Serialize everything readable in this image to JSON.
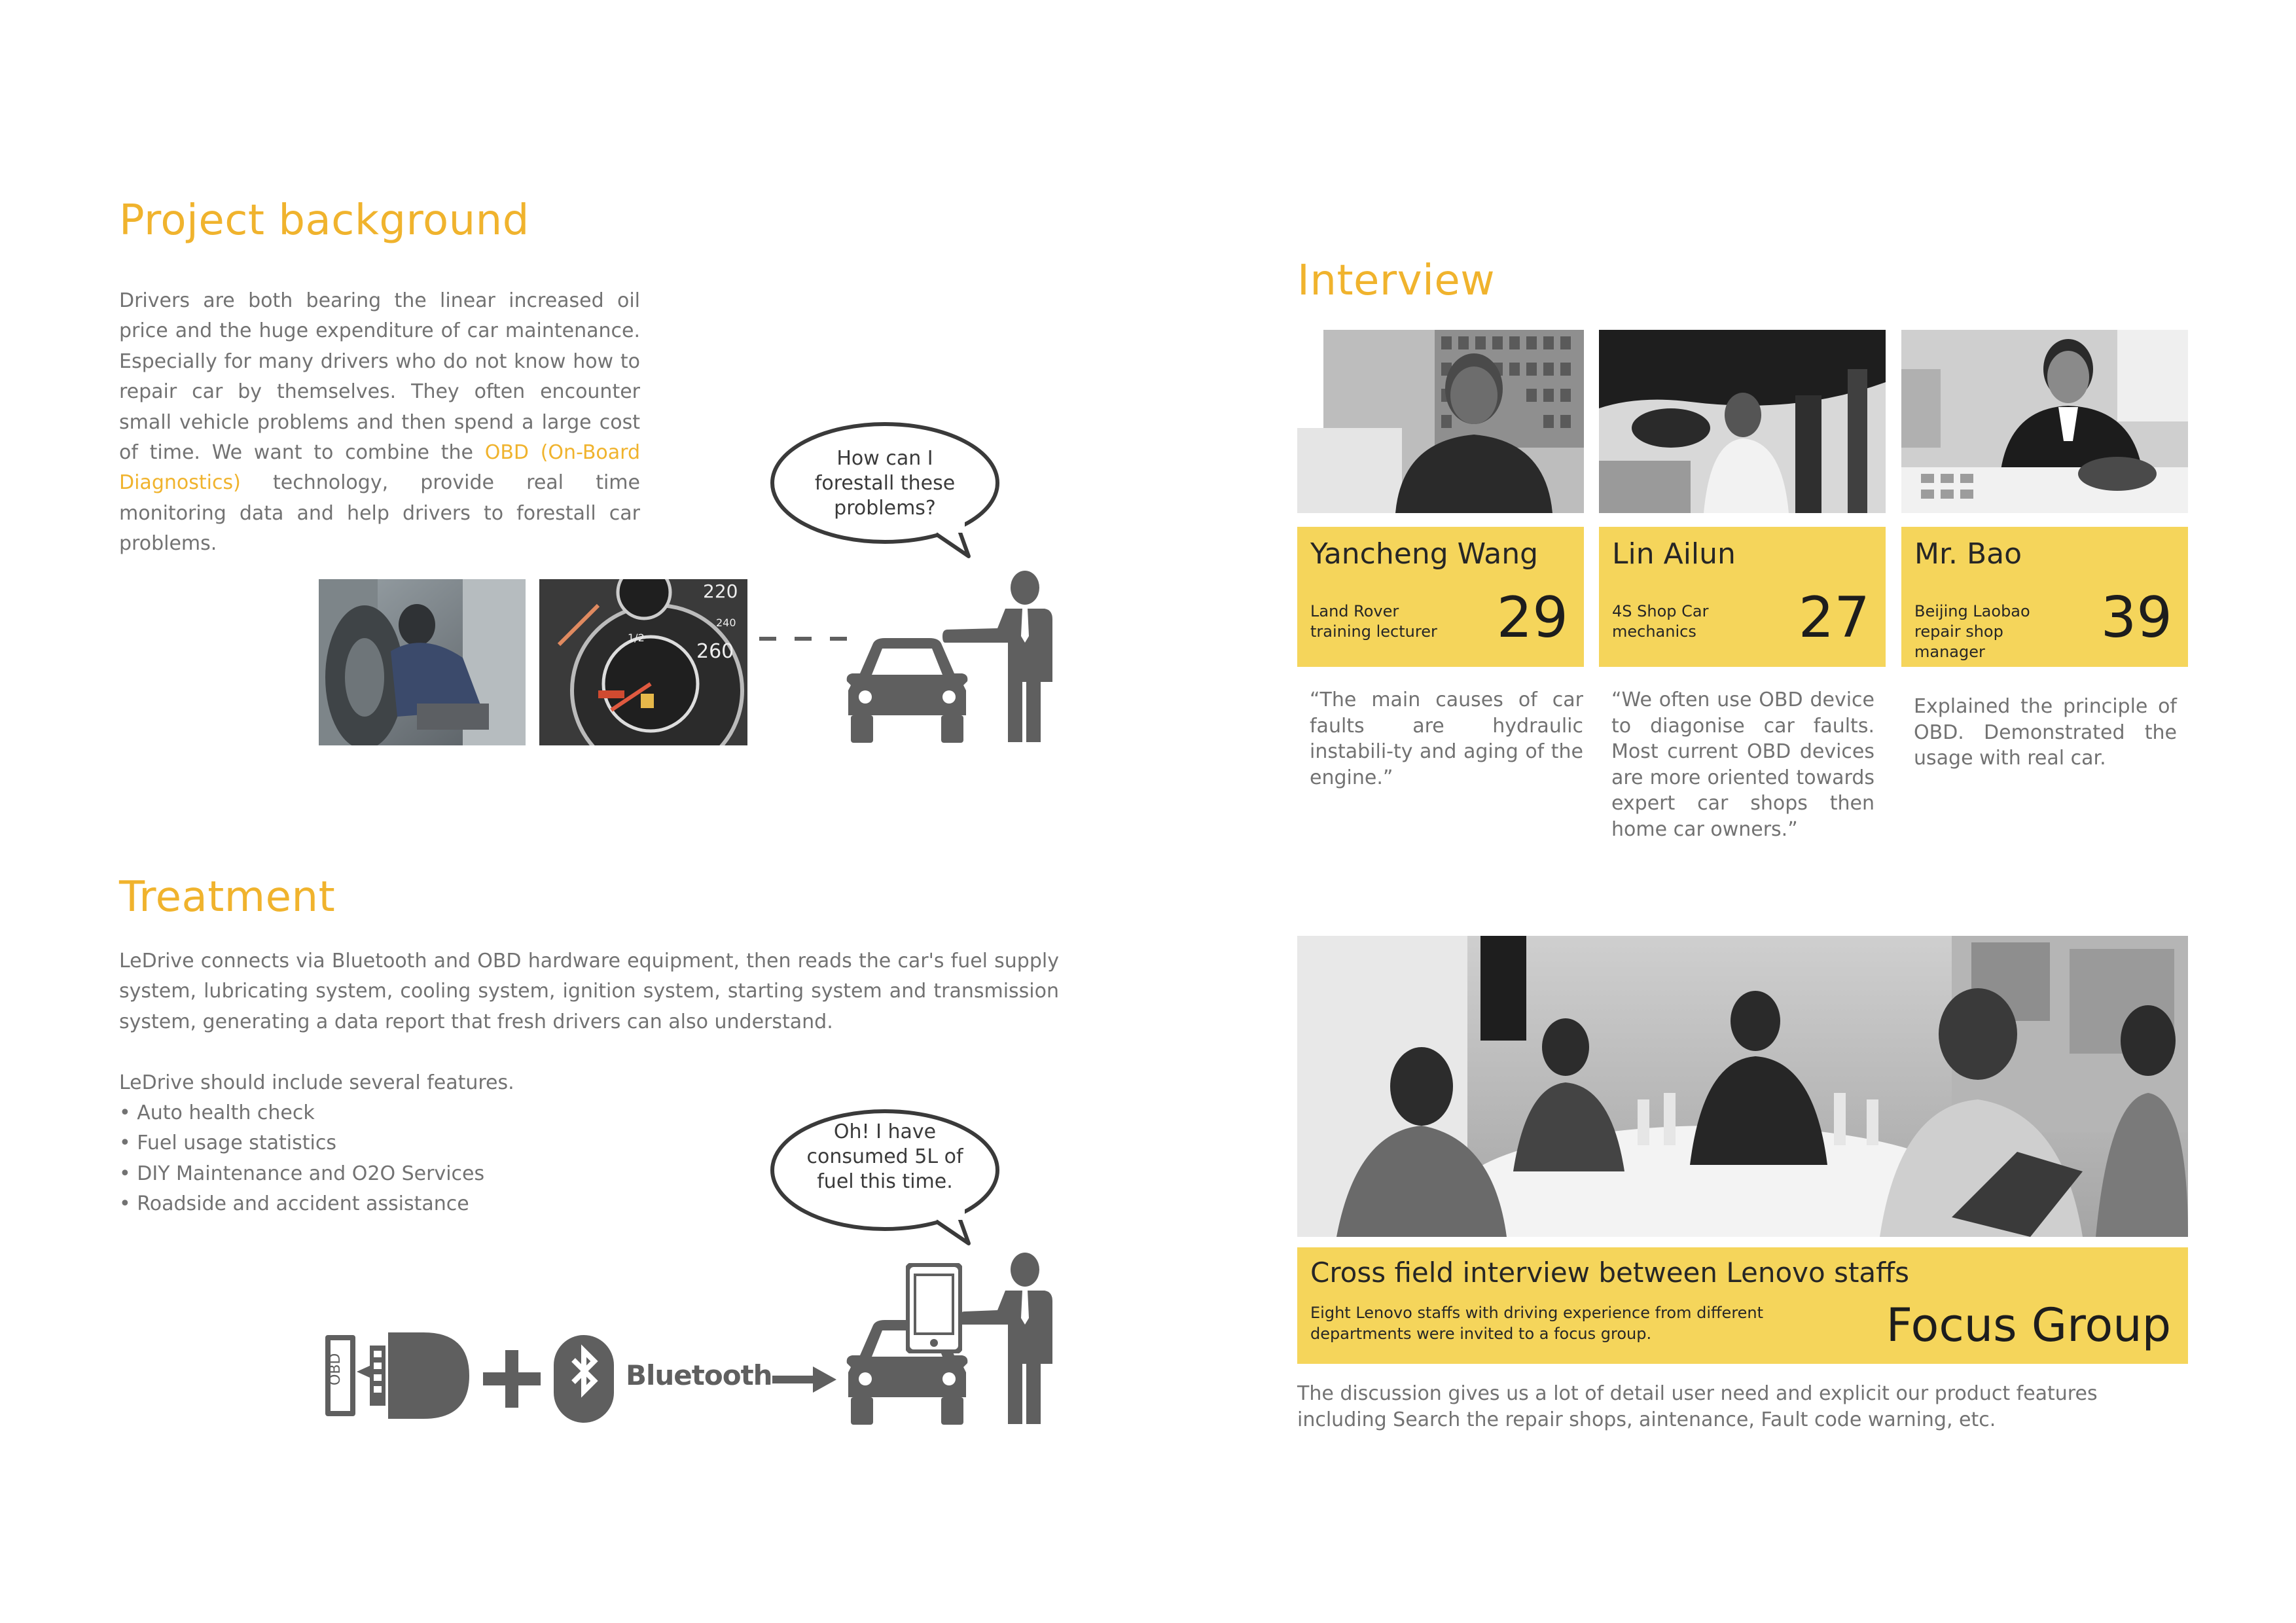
{
  "project_background": {
    "heading": "Project background",
    "text_before": "Drivers are both bearing the linear increased oil price and the huge expenditure of car maintenance. Especially for many drivers who do not know how to repair car by themselves. They often encounter small vehicle problems and then spend a large cost of time. We want to combine the ",
    "highlight": "OBD (On-Board Diagnostics)",
    "text_after": " technology, provide real time monitoring data and help drivers to forestall car problems.",
    "bubble": "How can I forestall these problems?"
  },
  "treatment": {
    "heading": "Treatment",
    "text": "LeDrive connects via Bluetooth and OBD hardware equipment, then reads the car's fuel supply system, lubricating system, cooling system, ignition system, starting system and transmission system, generating a data report that fresh drivers can also understand.",
    "features_intro": "LeDrive should include several features.",
    "features": [
      "Auto health check",
      "Fuel usage statistics",
      "DIY Maintenance and O2O Services",
      "Roadside and accident assistance"
    ],
    "bubble": "Oh! I have consumed 5L of fuel this time.",
    "obd_label": "OBD",
    "bluetooth_label": "Bluetooth"
  },
  "interview": {
    "heading": "Interview",
    "people": [
      {
        "name": "Yancheng Wang",
        "role": "Land Rover training lecturer",
        "age": "29",
        "quote": "“The main causes of car faults are hydraulic instabili-ty and aging of the engine.”"
      },
      {
        "name": "Lin Ailun",
        "role": "4S Shop Car mechanics",
        "age": "27",
        "quote": "“We often use OBD device to diagonise car faults. Most current OBD devices are more oriented towards expert car shops then home car owners.”"
      },
      {
        "name": "Mr. Bao",
        "role": "Beijing Laobao repair shop manager",
        "age": "39",
        "quote": "Explained the principle of OBD. Demonstrated the usage with real car."
      }
    ]
  },
  "focus_group": {
    "title": "Cross field interview between Lenovo staffs",
    "description": "Eight Lenovo staffs with driving experience from different departments were invited to a focus group.",
    "label": "Focus Group",
    "summary": "The discussion gives us a lot of detail user need and explicit our product features including Search the repair shops, aintenance, Fault code warning, etc."
  },
  "colors": {
    "accent": "#f0b32d",
    "card": "#f5d55b",
    "icon": "#5f5f5f",
    "text": "#727272"
  },
  "icons": [
    "speech-bubble-icon",
    "car-icon",
    "businessman-icon",
    "obd-connector-icon",
    "plus-icon",
    "bluetooth-icon",
    "arrow-right-icon",
    "smartphone-icon"
  ]
}
